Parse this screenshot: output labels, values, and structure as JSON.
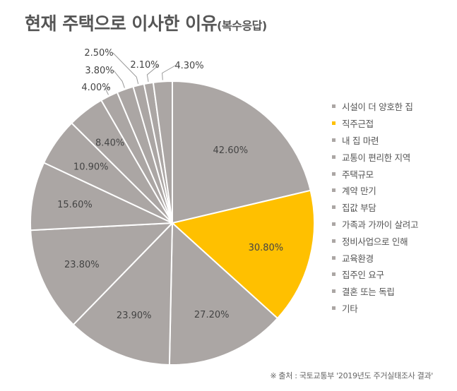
{
  "title": {
    "main": "현재 주택으로 이사한 이유",
    "sub": "(복수응답)"
  },
  "source": "※ 출처 : 국토교통부 '2019년도 주거실태조사 결과'",
  "colors": {
    "default": "#aba6a4",
    "highlight": "#ffc000",
    "label": "#444444",
    "leader": "#9a9a9a",
    "border": "#ffffff"
  },
  "chart_data": {
    "type": "pie",
    "title": "현재 주택으로 이사한 이유(복수응답)",
    "highlight_category": "직주근접",
    "legend_position": "right",
    "categories": [
      "시설이 더 양호한 집",
      "직주근접",
      "내 집 마련",
      "교통이 편리한 지역",
      "주택규모",
      "계약 만기",
      "집값 부담",
      "가족과 가까이 살려고",
      "정비사업으로 인해",
      "교육환경",
      "집주인 요구",
      "결혼 또는 독립",
      "기타"
    ],
    "values": [
      42.6,
      30.8,
      27.2,
      23.9,
      23.8,
      15.6,
      10.9,
      8.4,
      4.0,
      3.8,
      2.5,
      2.1,
      4.3
    ],
    "labels": [
      "42.60%",
      "30.80%",
      "27.20%",
      "23.90%",
      "23.80%",
      "15.60%",
      "10.90%",
      "8.40%",
      "4.00%",
      "3.80%",
      "2.50%",
      "2.10%",
      "4.30%"
    ]
  }
}
